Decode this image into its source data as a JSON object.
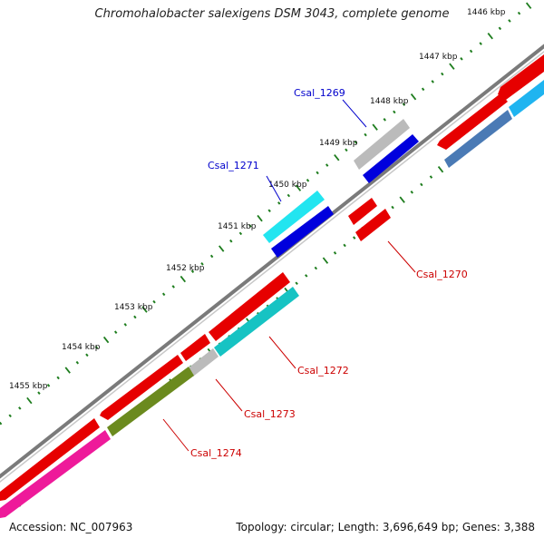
{
  "title": "Chromohalobacter salexigens DSM 3043, complete genome",
  "footer": {
    "accession": "Accession: NC_007963",
    "summary": "Topology: circular; Length: 3,696,649 bp; Genes: 3,388"
  },
  "colors": {
    "backbone": "#808080",
    "tick": "#1e7d1e",
    "label_blue": "#0000cc",
    "label_red": "#cc0000"
  },
  "ticks": [
    "1446 kbp",
    "1447 kbp",
    "1448 kbp",
    "1449 kbp",
    "1450 kbp",
    "1451 kbp",
    "1452 kbp",
    "1453 kbp",
    "1454 kbp",
    "1455 kbp"
  ],
  "genes": [
    {
      "label": "Csal_1269",
      "color": "#0000cc"
    },
    {
      "label": "Csal_1270",
      "color": "#cc0000"
    },
    {
      "label": "Csal_1271",
      "color": "#0000cc"
    },
    {
      "label": "Csal_1272",
      "color": "#cc0000"
    },
    {
      "label": "Csal_1273",
      "color": "#cc0000"
    },
    {
      "label": "Csal_1274",
      "color": "#cc0000"
    }
  ]
}
